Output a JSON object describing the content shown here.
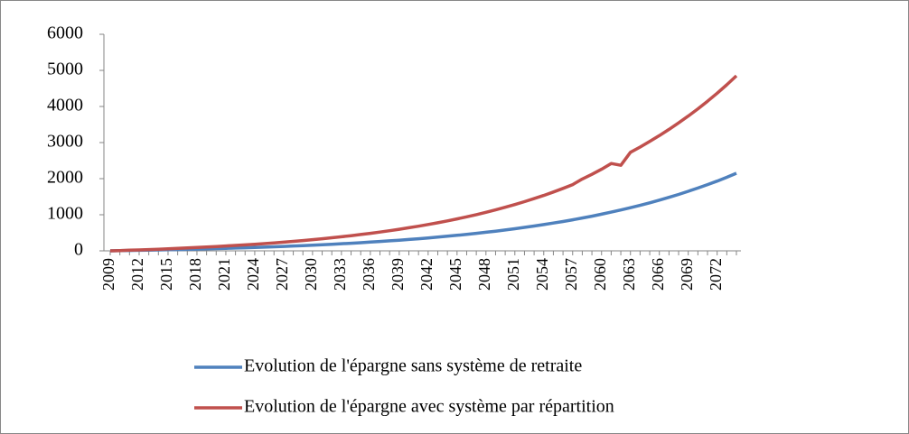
{
  "chart_data": {
    "type": "line",
    "categories": [
      2009,
      null,
      null,
      2012,
      null,
      null,
      2015,
      null,
      null,
      2018,
      null,
      null,
      2021,
      null,
      null,
      2024,
      null,
      null,
      2027,
      null,
      null,
      2030,
      null,
      null,
      2033,
      null,
      null,
      2036,
      null,
      null,
      2039,
      null,
      null,
      2042,
      null,
      null,
      2045,
      null,
      null,
      2048,
      null,
      null,
      2051,
      null,
      null,
      2054,
      null,
      null,
      2057,
      null,
      null,
      2060,
      null,
      null,
      2063,
      null,
      null,
      2066,
      null,
      null,
      2069,
      null,
      null,
      2072,
      null,
      null
    ],
    "series": [
      {
        "name": "Evolution de l'épargne sans système de retraite",
        "color": "#4f81bd",
        "values": [
          0,
          4,
          9,
          14,
          19,
          24,
          29,
          35,
          41,
          48,
          55,
          62,
          69,
          77,
          85,
          94,
          103,
          113,
          123,
          134,
          145,
          157,
          170,
          183,
          197,
          211,
          226,
          242,
          259,
          277,
          296,
          316,
          336,
          358,
          381,
          405,
          430,
          457,
          485,
          515,
          546,
          578,
          613,
          649,
          687,
          727,
          769,
          813,
          860,
          909,
          960,
          1015,
          1072,
          1132,
          1195,
          1261,
          1331,
          1405,
          1482,
          1563,
          1649,
          1739,
          1834,
          1933,
          2038,
          2149
        ]
      },
      {
        "name": "Evolution de l'épargne avec système par répartition",
        "color": "#c0504d",
        "values": [
          0,
          8,
          17,
          26,
          35,
          45,
          56,
          67,
          79,
          92,
          105,
          119,
          134,
          149,
          166,
          183,
          201,
          221,
          241,
          263,
          286,
          310,
          335,
          362,
          391,
          421,
          452,
          486,
          521,
          558,
          598,
          639,
          683,
          729,
          778,
          830,
          885,
          942,
          1003,
          1068,
          1136,
          1207,
          1283,
          1363,
          1447,
          1536,
          1631,
          1730,
          1835,
          1990,
          2120,
          2260,
          2420,
          2370,
          2730,
          2876,
          3030,
          3193,
          3364,
          3544,
          3734,
          3934,
          4145,
          4367,
          4601,
          4850
        ]
      }
    ],
    "ylim": [
      0,
      6000
    ],
    "yticks": [
      0,
      1000,
      2000,
      3000,
      4000,
      5000,
      6000
    ]
  }
}
